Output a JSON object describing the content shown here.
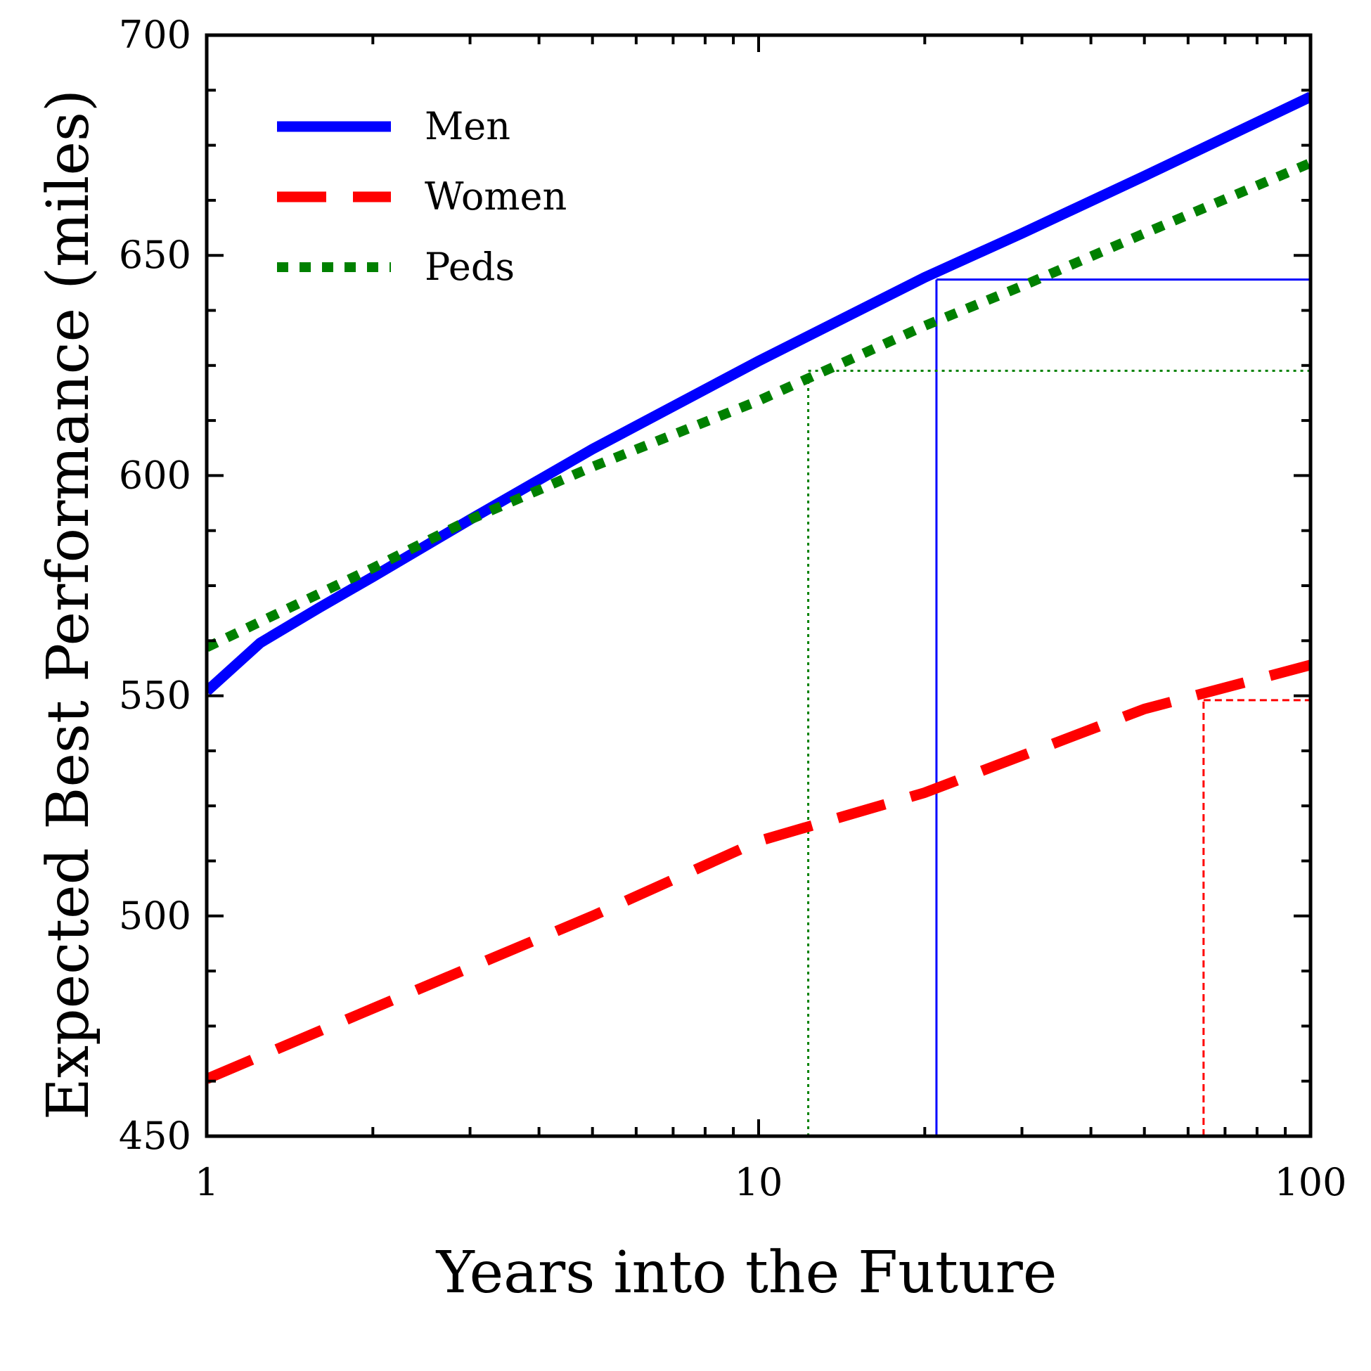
{
  "chart_data": {
    "type": "line",
    "xscale": "log",
    "xlabel": "Years into the Future",
    "ylabel": "Expected Best Performance (miles)",
    "xlim": [
      1,
      100
    ],
    "ylim": [
      450,
      700
    ],
    "xticks": [
      1,
      10,
      100
    ],
    "xtick_labels": [
      "1",
      "10",
      "100"
    ],
    "yticks": [
      450,
      500,
      550,
      600,
      650,
      700
    ],
    "ytick_labels": [
      "450",
      "500",
      "550",
      "600",
      "650",
      "700"
    ],
    "legend_position": "top-left",
    "series": [
      {
        "name": "Men",
        "color": "#0000ff",
        "style": "solid",
        "x": [
          1,
          1.25,
          1.6,
          2,
          3,
          5,
          10,
          20,
          30,
          50,
          100
        ],
        "y": [
          551,
          562,
          570,
          577,
          590,
          606,
          626,
          645,
          655,
          668,
          686
        ]
      },
      {
        "name": "Women",
        "color": "#ff0000",
        "style": "dashed",
        "x": [
          1,
          2,
          5,
          10,
          20,
          50,
          100
        ],
        "y": [
          463,
          479,
          500,
          517,
          528,
          547,
          557
        ]
      },
      {
        "name": "Peds",
        "color": "#008000",
        "style": "dotted",
        "x": [
          1,
          2,
          3,
          5,
          10,
          20,
          30,
          50,
          100
        ],
        "y": [
          561,
          579,
          590,
          602,
          617,
          634,
          643,
          655,
          671
        ]
      }
    ],
    "reference_lines": [
      {
        "series": "Men",
        "x": 21,
        "y": 644.5,
        "color": "#0000ff",
        "style": "solid"
      },
      {
        "series": "Peds",
        "x": 12.3,
        "y": 623.8,
        "color": "#008000",
        "style": "dotted"
      },
      {
        "series": "Women",
        "x": 64,
        "y": 549,
        "color": "#ff0000",
        "style": "dashed"
      }
    ]
  }
}
